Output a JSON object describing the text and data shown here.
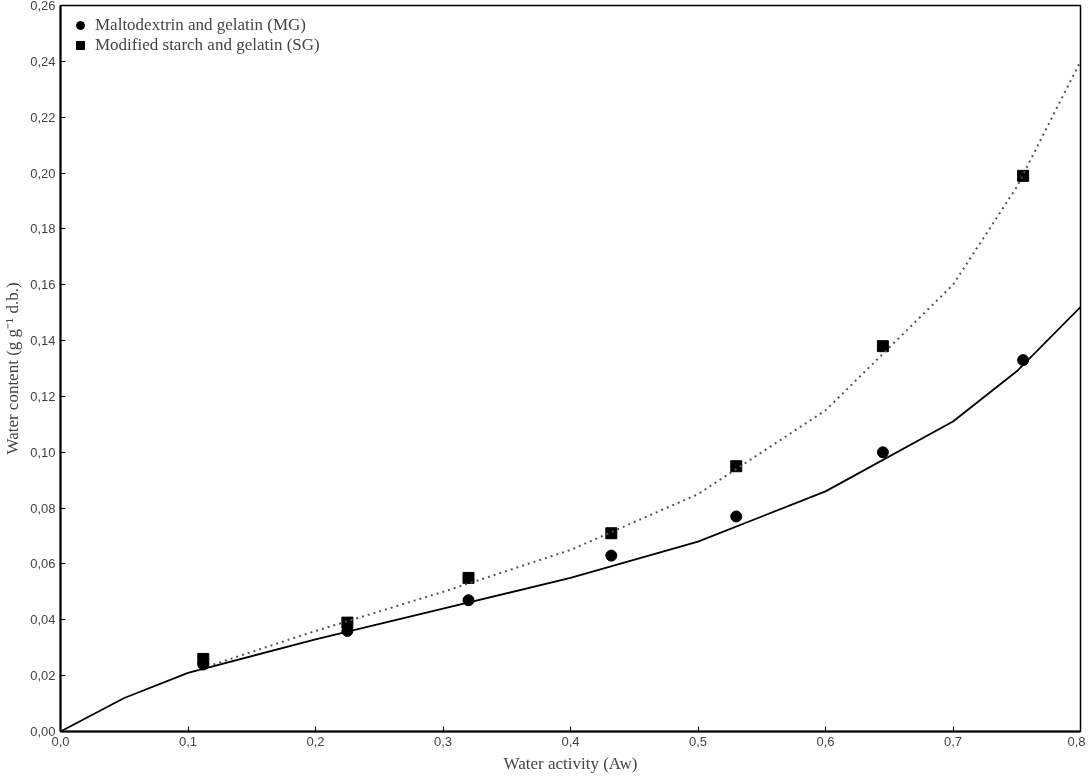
{
  "chart_data": {
    "type": "scatter",
    "xlabel": "Water activity (Aw)",
    "ylabel": "Water content (g g⁻¹ d.b.)",
    "xlim": [
      0,
      0.8
    ],
    "ylim": [
      0,
      0.26
    ],
    "xticks": [
      {
        "value": 0,
        "label": "0,0"
      },
      {
        "value": 0.1,
        "label": "0,1"
      },
      {
        "value": 0.2,
        "label": "0,2"
      },
      {
        "value": 0.3,
        "label": "0,3"
      },
      {
        "value": 0.4,
        "label": "0,4"
      },
      {
        "value": 0.5,
        "label": "0,5"
      },
      {
        "value": 0.6,
        "label": "0,6"
      },
      {
        "value": 0.7,
        "label": "0,7"
      },
      {
        "value": 0.8,
        "label": "0,8"
      }
    ],
    "yticks": [
      {
        "value": 0,
        "label": "0,00"
      },
      {
        "value": 0.02,
        "label": "0,02"
      },
      {
        "value": 0.04,
        "label": "0,04"
      },
      {
        "value": 0.06,
        "label": "0,06"
      },
      {
        "value": 0.08,
        "label": "0,08"
      },
      {
        "value": 0.1,
        "label": "0,10"
      },
      {
        "value": 0.12,
        "label": "0,12"
      },
      {
        "value": 0.14,
        "label": "0,14"
      },
      {
        "value": 0.16,
        "label": "0,16"
      },
      {
        "value": 0.18,
        "label": "0,18"
      },
      {
        "value": 0.2,
        "label": "0,20"
      },
      {
        "value": 0.22,
        "label": "0,22"
      },
      {
        "value": 0.24,
        "label": "0,24"
      },
      {
        "value": 0.26,
        "label": "0,26"
      }
    ],
    "grid": false,
    "legend": "top left",
    "series": [
      {
        "name": "Maltodextrin and gelatin (MG)",
        "marker": "circle",
        "color": "#000000",
        "x": [
          0.112,
          0.225,
          0.32,
          0.432,
          0.53,
          0.645,
          0.755
        ],
        "values": [
          0.024,
          0.036,
          0.047,
          0.063,
          0.077,
          0.1,
          0.133
        ]
      },
      {
        "name": "Modified starch and gelatin (SG)",
        "marker": "square",
        "color": "#000000",
        "x": [
          0.112,
          0.225,
          0.32,
          0.432,
          0.53,
          0.645,
          0.755
        ],
        "values": [
          0.026,
          0.039,
          0.055,
          0.071,
          0.095,
          0.138,
          0.199
        ]
      },
      {
        "type": "line",
        "line_style": "solid",
        "color": "#000000",
        "x": [
          0,
          0.05,
          0.1,
          0.2,
          0.3,
          0.4,
          0.5,
          0.6,
          0.7,
          0.75,
          0.8
        ],
        "values": [
          0,
          0.012,
          0.021,
          0.033,
          0.044,
          0.055,
          0.068,
          0.086,
          0.111,
          0.129,
          0.152
        ]
      },
      {
        "type": "line",
        "line_style": "dotted",
        "color": "#555555",
        "x": [
          0.12,
          0.2,
          0.3,
          0.4,
          0.5,
          0.6,
          0.7,
          0.75,
          0.8
        ],
        "values": [
          0.024,
          0.036,
          0.05,
          0.065,
          0.085,
          0.115,
          0.16,
          0.195,
          0.24
        ]
      }
    ]
  }
}
